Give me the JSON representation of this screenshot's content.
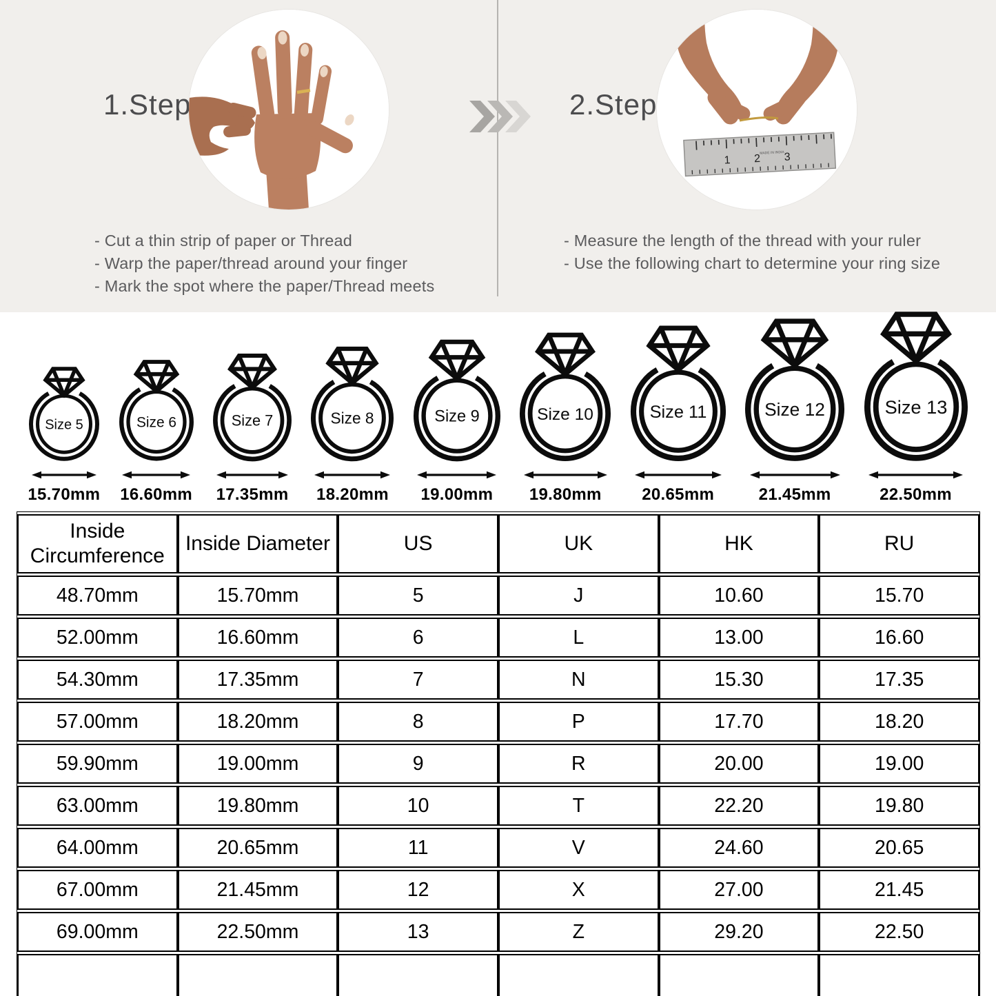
{
  "colors": {
    "top_background": "#f1efec",
    "ink_black": "#0c0c0c",
    "text_gray": "#5b5b5d",
    "title_gray": "#4c4c4e",
    "chevron_shades": [
      "#a7a5a2",
      "#bab8b5",
      "#d8d6d3"
    ],
    "skin_tone": "#bb8061",
    "ring_gold": "#d9b254",
    "ruler_gray": "#c6c5c3"
  },
  "steps": [
    {
      "title": "1.Step",
      "photo_alt": "circular photo of a hand with a ring on the ring finger",
      "instructions": [
        "- Cut a thin strip of paper or Thread",
        "- Warp the paper/thread around your finger",
        "- Mark the spot where the paper/Thread meets"
      ]
    },
    {
      "title": "2.Step",
      "photo_alt": "circular photo of two hands measuring a thread with a ruler",
      "instructions": [
        "- Measure the length of the thread with your ruler",
        "- Use the following chart to determine your ring size"
      ],
      "ruler_numbers": [
        "1",
        "2",
        "3"
      ],
      "ruler_text": "MADE IN INDIA"
    }
  ],
  "rings": [
    {
      "label": "Size 5",
      "diameter": "15.70mm"
    },
    {
      "label": "Size 6",
      "diameter": "16.60mm"
    },
    {
      "label": "Size 7",
      "diameter": "17.35mm"
    },
    {
      "label": "Size 8",
      "diameter": "18.20mm"
    },
    {
      "label": "Size 9",
      "diameter": "19.00mm"
    },
    {
      "label": "Size 10",
      "diameter": "19.80mm"
    },
    {
      "label": "Size 11",
      "diameter": "20.65mm"
    },
    {
      "label": "Size 12",
      "diameter": "21.45mm"
    },
    {
      "label": "Size 13",
      "diameter": "22.50mm"
    }
  ],
  "size_table": {
    "headers": [
      "Inside Circumference",
      "Inside Diameter",
      "US",
      "UK",
      "HK",
      "RU"
    ],
    "rows": [
      [
        "48.70mm",
        "15.70mm",
        "5",
        "J",
        "10.60",
        "15.70"
      ],
      [
        "52.00mm",
        "16.60mm",
        "6",
        "L",
        "13.00",
        "16.60"
      ],
      [
        "54.30mm",
        "17.35mm",
        "7",
        "N",
        "15.30",
        "17.35"
      ],
      [
        "57.00mm",
        "18.20mm",
        "8",
        "P",
        "17.70",
        "18.20"
      ],
      [
        "59.90mm",
        "19.00mm",
        "9",
        "R",
        "20.00",
        "19.00"
      ],
      [
        "63.00mm",
        "19.80mm",
        "10",
        "T",
        "22.20",
        "19.80"
      ],
      [
        "64.00mm",
        "20.65mm",
        "11",
        "V",
        "24.60",
        "20.65"
      ],
      [
        "67.00mm",
        "21.45mm",
        "12",
        "X",
        "27.00",
        "21.45"
      ],
      [
        "69.00mm",
        "22.50mm",
        "13",
        "Z",
        "29.20",
        "22.50"
      ]
    ],
    "has_trailing_empty_row": true
  }
}
